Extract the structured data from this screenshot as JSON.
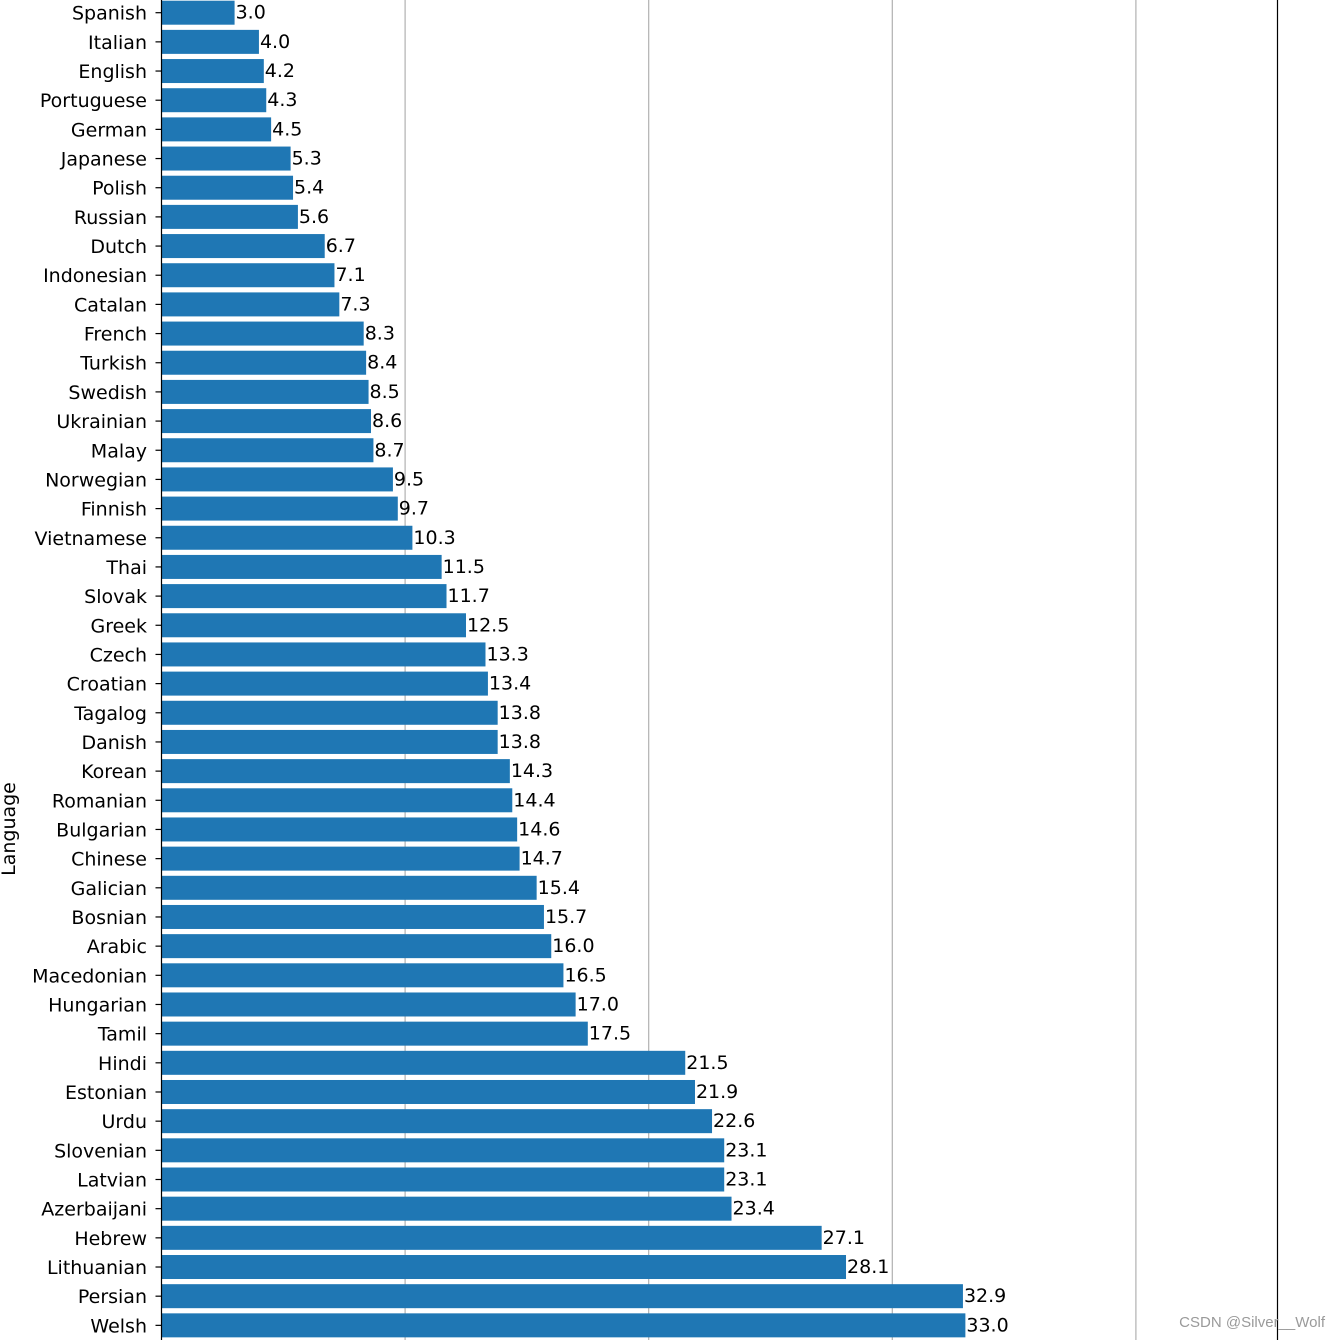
{
  "chart_data": {
    "type": "bar",
    "orientation": "horizontal",
    "ylabel": "Language",
    "xlim": [
      -1,
      45
    ],
    "grid": true,
    "bar_color": "#1f77b4",
    "categories": [
      "Spanish",
      "Italian",
      "English",
      "Portuguese",
      "German",
      "Japanese",
      "Polish",
      "Russian",
      "Dutch",
      "Indonesian",
      "Catalan",
      "French",
      "Turkish",
      "Swedish",
      "Ukrainian",
      "Malay",
      "Norwegian",
      "Finnish",
      "Vietnamese",
      "Thai",
      "Slovak",
      "Greek",
      "Czech",
      "Croatian",
      "Tagalog",
      "Danish",
      "Korean",
      "Romanian",
      "Bulgarian",
      "Chinese",
      "Galician",
      "Bosnian",
      "Arabic",
      "Macedonian",
      "Hungarian",
      "Tamil",
      "Hindi",
      "Estonian",
      "Urdu",
      "Slovenian",
      "Latvian",
      "Azerbaijani",
      "Hebrew",
      "Lithuanian",
      "Persian",
      "Welsh"
    ],
    "values": [
      3.0,
      4.0,
      4.2,
      4.3,
      4.5,
      5.3,
      5.4,
      5.6,
      6.7,
      7.1,
      7.3,
      8.3,
      8.4,
      8.5,
      8.6,
      8.7,
      9.5,
      9.7,
      10.3,
      11.5,
      11.7,
      12.5,
      13.3,
      13.4,
      13.8,
      13.8,
      14.3,
      14.4,
      14.6,
      14.7,
      15.4,
      15.7,
      16.0,
      16.5,
      17.0,
      17.5,
      21.5,
      21.9,
      22.6,
      23.1,
      23.1,
      23.4,
      27.1,
      28.1,
      32.9,
      33.0
    ],
    "value_labels": [
      "3.0",
      "4.0",
      "4.2",
      "4.3",
      "4.5",
      "5.3",
      "5.4",
      "5.6",
      "6.7",
      "7.1",
      "7.3",
      "8.3",
      "8.4",
      "8.5",
      "8.6",
      "8.7",
      "9.5",
      "9.7",
      "10.3",
      "11.5",
      "11.7",
      "12.5",
      "13.3",
      "13.4",
      "13.8",
      "13.8",
      "14.3",
      "14.4",
      "14.6",
      "14.7",
      "15.4",
      "15.7",
      "16.0",
      "16.5",
      "17.0",
      "17.5",
      "21.5",
      "21.9",
      "22.6",
      "23.1",
      "23.1",
      "23.4",
      "27.1",
      "28.1",
      "32.9",
      "33.0"
    ]
  },
  "watermark": "CSDN @Silver__Wolf"
}
